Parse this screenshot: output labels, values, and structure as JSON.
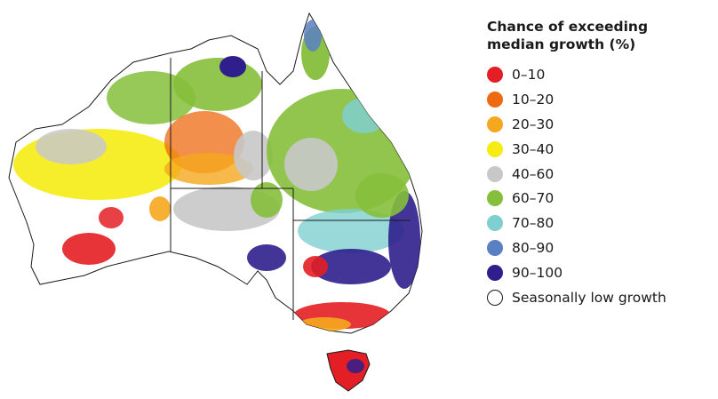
{
  "legend": {
    "title_line1": "Chance of exceeding",
    "title_line2": "median growth (%)",
    "items": [
      {
        "label": "0–10",
        "color": "#e31e24"
      },
      {
        "label": "10–20",
        "color": "#ee6a12"
      },
      {
        "label": "20–30",
        "color": "#f5a71d"
      },
      {
        "label": "30–40",
        "color": "#f6ec14"
      },
      {
        "label": "40–60",
        "color": "#c8c8c8"
      },
      {
        "label": "60–70",
        "color": "#85bf3b"
      },
      {
        "label": "70–80",
        "color": "#7fcfcf"
      },
      {
        "label": "80–90",
        "color": "#5a7fc2"
      },
      {
        "label": "90–100",
        "color": "#2e1f8c"
      },
      {
        "label": "Seasonally low growth",
        "color": "#ffffff"
      }
    ]
  },
  "map_regions": [
    {
      "name": "wa-pilbara-yellow",
      "category": "30–40"
    },
    {
      "name": "wa-wheatbelt-red",
      "category": "0–10"
    },
    {
      "name": "nt-top-end-green",
      "category": "60–70"
    },
    {
      "name": "nt-orange",
      "category": "20–30"
    },
    {
      "name": "qld-green",
      "category": "60–70"
    },
    {
      "name": "qld-grey",
      "category": "40–60"
    },
    {
      "name": "nsw-blue",
      "category": "90–100"
    },
    {
      "name": "sa-grey",
      "category": "40–60"
    },
    {
      "name": "vic-red",
      "category": "0–10"
    },
    {
      "name": "tas-red",
      "category": "0–10"
    }
  ]
}
